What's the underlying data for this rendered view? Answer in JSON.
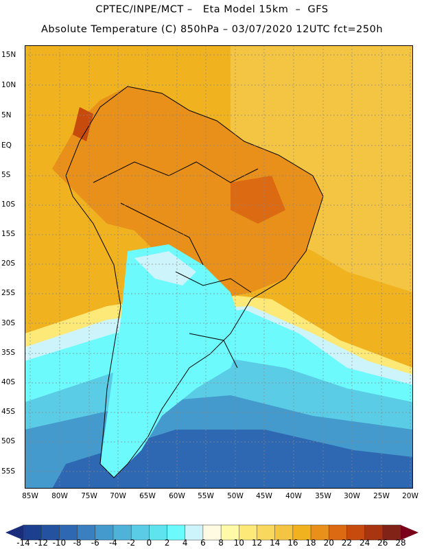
{
  "header": {
    "line1": "CPTEC/INPE/MCT –   Eta Model 15km  –  GFS",
    "line2": "Absolute Temperature (C) 850hPa – 03/07/2020 12UTC fct=250h"
  },
  "axes": {
    "lat_labels": [
      "15N",
      "10N",
      "5N",
      "EQ",
      "5S",
      "10S",
      "15S",
      "20S",
      "25S",
      "30S",
      "35S",
      "40S",
      "45S",
      "50S",
      "55S"
    ],
    "lon_labels": [
      "85W",
      "80W",
      "75W",
      "70W",
      "65W",
      "60W",
      "55W",
      "50W",
      "45W",
      "40W",
      "35W",
      "30W",
      "25W",
      "20W"
    ]
  },
  "colorbar": {
    "labels": [
      "-14",
      "-12",
      "-10",
      "-8",
      "-6",
      "-4",
      "-2",
      "0",
      "2",
      "4",
      "6",
      "8",
      "10",
      "12",
      "14",
      "16",
      "18",
      "20",
      "22",
      "24",
      "26",
      "28"
    ],
    "colors": [
      "#1c3f8f",
      "#2552a0",
      "#2f68b2",
      "#3a7fbf",
      "#449acc",
      "#4fb3d9",
      "#5acce6",
      "#5fe3ef",
      "#6cfafc",
      "#cdf4fb",
      "#fffbe3",
      "#fefaa8",
      "#fce978",
      "#f8d85d",
      "#f4c542",
      "#f0b21f",
      "#e8901a",
      "#dc6a12",
      "#c84b0e",
      "#a83410",
      "#812316"
    ],
    "low_color": "#1a2d7a",
    "high_color": "#7a001a"
  }
}
